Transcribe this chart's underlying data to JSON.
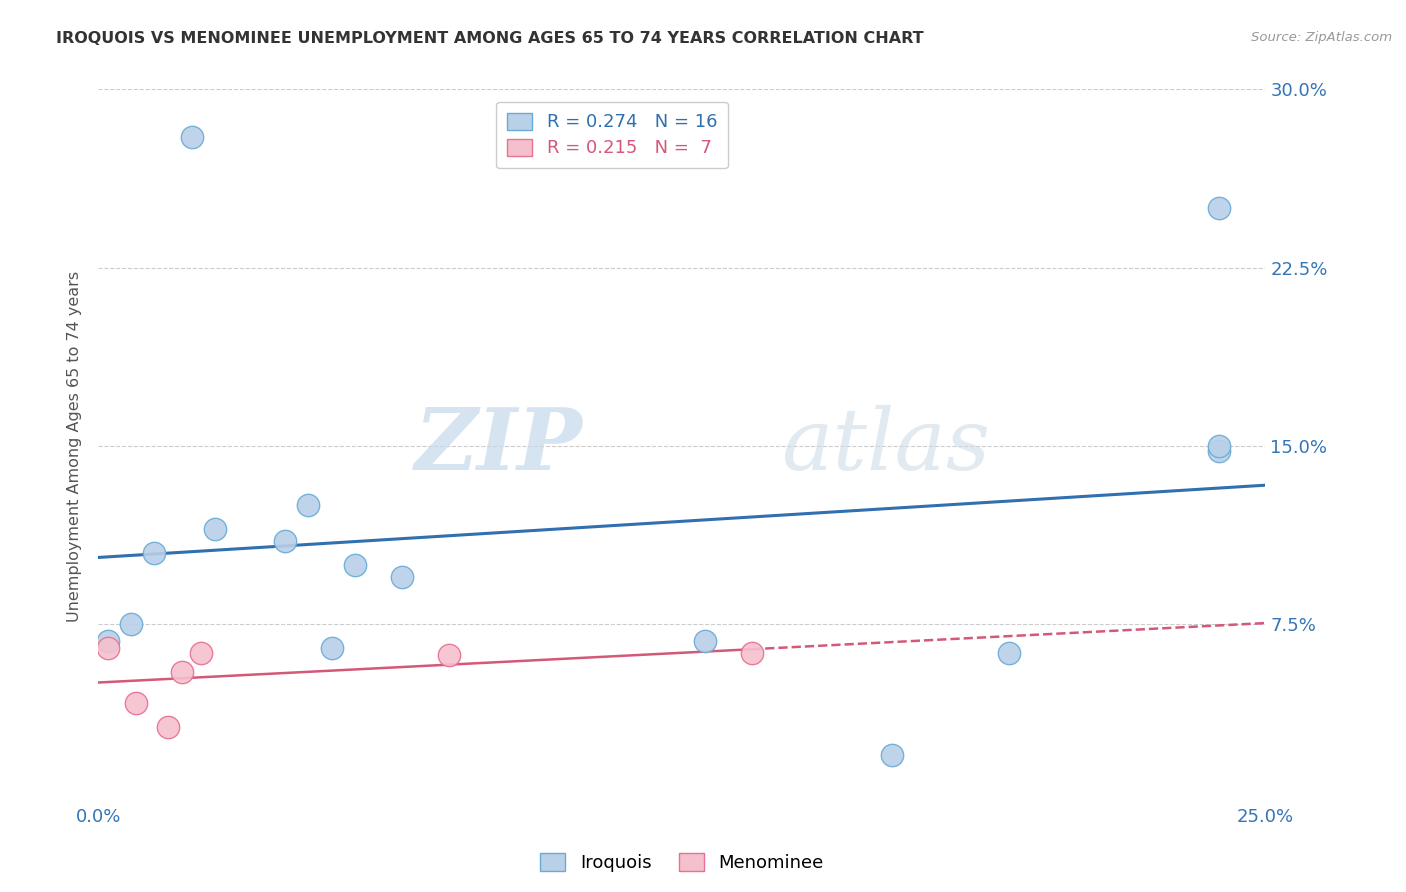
{
  "title": "IROQUOIS VS MENOMINEE UNEMPLOYMENT AMONG AGES 65 TO 74 YEARS CORRELATION CHART",
  "source": "Source: ZipAtlas.com",
  "ylabel": "Unemployment Among Ages 65 to 74 years",
  "xlim": [
    0.0,
    0.25
  ],
  "ylim": [
    0.0,
    0.3
  ],
  "xticks": [
    0.0,
    0.05,
    0.1,
    0.15,
    0.2,
    0.25
  ],
  "xticklabels": [
    "0.0%",
    "",
    "",
    "",
    "",
    "25.0%"
  ],
  "yticks": [
    0.0,
    0.075,
    0.15,
    0.225,
    0.3
  ],
  "yticklabels": [
    "",
    "7.5%",
    "15.0%",
    "22.5%",
    "30.0%"
  ],
  "iroquois_color": "#b8d0e8",
  "iroquois_edge_color": "#6aabd6",
  "menominee_color": "#f5c0ce",
  "menominee_edge_color": "#e87090",
  "trendline_iroquois_color": "#3070b0",
  "trendline_menominee_color": "#d45878",
  "legend_R_iroquois": "R = 0.274",
  "legend_N_iroquois": "N = 16",
  "legend_R_menominee": "R = 0.215",
  "legend_N_menominee": "N =  7",
  "watermark_zip": "ZIP",
  "watermark_atlas": "atlas",
  "iroquois_x": [
    0.002,
    0.007,
    0.012,
    0.02,
    0.025,
    0.04,
    0.045,
    0.05,
    0.055,
    0.065,
    0.13,
    0.17,
    0.195,
    0.24,
    0.24,
    0.24
  ],
  "iroquois_y": [
    0.068,
    0.075,
    0.105,
    0.28,
    0.115,
    0.11,
    0.125,
    0.065,
    0.1,
    0.095,
    0.068,
    0.02,
    0.063,
    0.148,
    0.25,
    0.15
  ],
  "menominee_x": [
    0.002,
    0.008,
    0.015,
    0.018,
    0.022,
    0.075,
    0.14
  ],
  "menominee_y": [
    0.065,
    0.042,
    0.032,
    0.055,
    0.063,
    0.062,
    0.063
  ],
  "trend_iroq_x0": 0.0,
  "trend_iroq_y0": 0.088,
  "trend_iroq_x1": 0.25,
  "trend_iroq_y1": 0.148,
  "trend_meno_solid_x0": 0.0,
  "trend_meno_solid_y0": 0.042,
  "trend_meno_solid_x1": 0.14,
  "trend_meno_solid_y1": 0.058,
  "trend_meno_dash_x0": 0.14,
  "trend_meno_dash_y0": 0.058,
  "trend_meno_dash_x1": 0.25,
  "trend_meno_dash_y1": 0.071
}
